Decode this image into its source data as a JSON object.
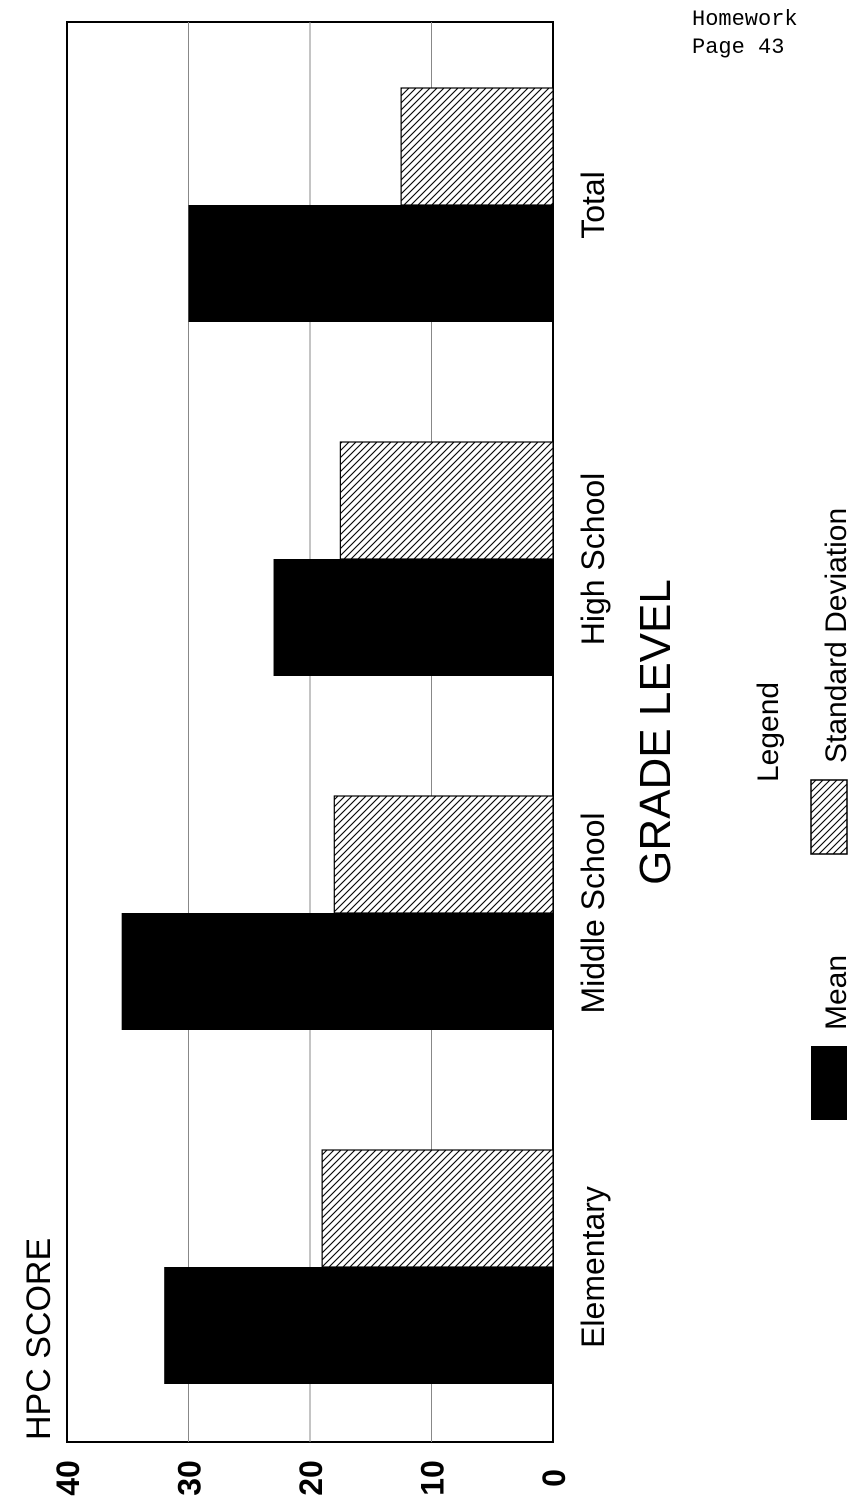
{
  "header": {
    "line1": "Homework",
    "line2": "Page 43"
  },
  "colors": {
    "mean": "#000000",
    "stddev_hatch": "#000000",
    "background": "#ffffff"
  },
  "chart_data": {
    "type": "bar",
    "orientation": "rotated-90-ccw",
    "title": "",
    "ylabel": "HPC SCORE",
    "xlabel": "GRADE LEVEL",
    "categories": [
      "Elementary",
      "Middle School",
      "High School",
      "Total"
    ],
    "series": [
      {
        "name": "Mean",
        "values": [
          32,
          35.5,
          23,
          30
        ],
        "fill": "solid-black"
      },
      {
        "name": "Standard Deviation",
        "values": [
          19,
          18,
          17.5,
          12.5
        ],
        "fill": "diagonal-hatch"
      }
    ],
    "ylim": [
      0,
      40
    ],
    "yticks": [
      "0",
      "10",
      "20",
      "30",
      "40"
    ],
    "grid": true,
    "legend": {
      "title": "Legend",
      "items": [
        "Mean",
        "Standard Deviation"
      ],
      "placement": "bottom-right"
    }
  }
}
